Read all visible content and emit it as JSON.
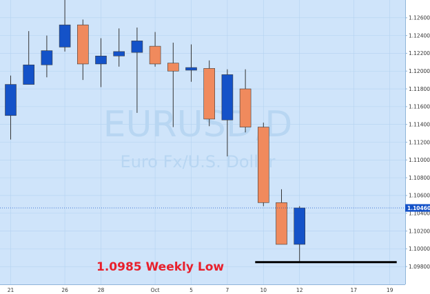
{
  "chart_data": {
    "type": "candlestick",
    "watermark": {
      "symbol": "EURUSD,D",
      "name": "Euro Fx/U.S. Dollar"
    },
    "colors": {
      "up": "#1452c8",
      "down": "#f08a5d",
      "wick": "#333333",
      "background": "#cfe4fa",
      "grid": "#b3d2f0",
      "support_line": "#000000",
      "annotation": "#e8202c",
      "price_tag": "#1452c8"
    },
    "ylim": [
      1.096,
      1.128
    ],
    "y_ticks": [
      "1.09800",
      "1.10000",
      "1.10200",
      "1.10400",
      "1.10600",
      "1.10800",
      "1.11000",
      "1.11200",
      "1.11400",
      "1.11600",
      "1.11800",
      "1.12000",
      "1.12200",
      "1.12400",
      "1.12600"
    ],
    "x_ticks": [
      {
        "label": "21",
        "index": 0
      },
      {
        "label": "26",
        "index": 3
      },
      {
        "label": "28",
        "index": 5
      },
      {
        "label": "Oct",
        "index": 8
      },
      {
        "label": "5",
        "index": 10
      },
      {
        "label": "7",
        "index": 12
      },
      {
        "label": "10",
        "index": 14
      },
      {
        "label": "12",
        "index": 16
      },
      {
        "label": "17",
        "index": 19
      },
      {
        "label": "19",
        "index": 21
      }
    ],
    "candles": [
      {
        "open": 1.115,
        "high": 1.1195,
        "low": 1.1123,
        "close": 1.1185
      },
      {
        "open": 1.1185,
        "high": 1.1245,
        "low": 1.1185,
        "close": 1.1207
      },
      {
        "open": 1.1207,
        "high": 1.124,
        "low": 1.1193,
        "close": 1.1223
      },
      {
        "open": 1.1227,
        "high": 1.1285,
        "low": 1.1222,
        "close": 1.1252
      },
      {
        "open": 1.1252,
        "high": 1.1258,
        "low": 1.119,
        "close": 1.1208
      },
      {
        "open": 1.1208,
        "high": 1.1237,
        "low": 1.1182,
        "close": 1.1217
      },
      {
        "open": 1.1217,
        "high": 1.1248,
        "low": 1.1205,
        "close": 1.1222
      },
      {
        "open": 1.1221,
        "high": 1.1249,
        "low": 1.1153,
        "close": 1.1234
      },
      {
        "open": 1.1228,
        "high": 1.1244,
        "low": 1.1205,
        "close": 1.1208
      },
      {
        "open": 1.1209,
        "high": 1.1232,
        "low": 1.1137,
        "close": 1.12
      },
      {
        "open": 1.1201,
        "high": 1.123,
        "low": 1.1188,
        "close": 1.1204
      },
      {
        "open": 1.1203,
        "high": 1.1212,
        "low": 1.1138,
        "close": 1.1146
      },
      {
        "open": 1.1145,
        "high": 1.1202,
        "low": 1.1104,
        "close": 1.1196
      },
      {
        "open": 1.118,
        "high": 1.1202,
        "low": 1.1131,
        "close": 1.1137
      },
      {
        "open": 1.1137,
        "high": 1.1142,
        "low": 1.1048,
        "close": 1.1052
      },
      {
        "open": 1.1052,
        "high": 1.1067,
        "low": 1.1005,
        "close": 1.1005
      },
      {
        "open": 1.1005,
        "high": 1.1048,
        "low": 1.0985,
        "close": 1.1046
      }
    ],
    "last_price": {
      "value": 1.1046,
      "label": "1.10460"
    },
    "support": {
      "value": 1.0985,
      "from_index": 14,
      "to_index": 21,
      "label": "1.0985 Weekly Low"
    }
  }
}
